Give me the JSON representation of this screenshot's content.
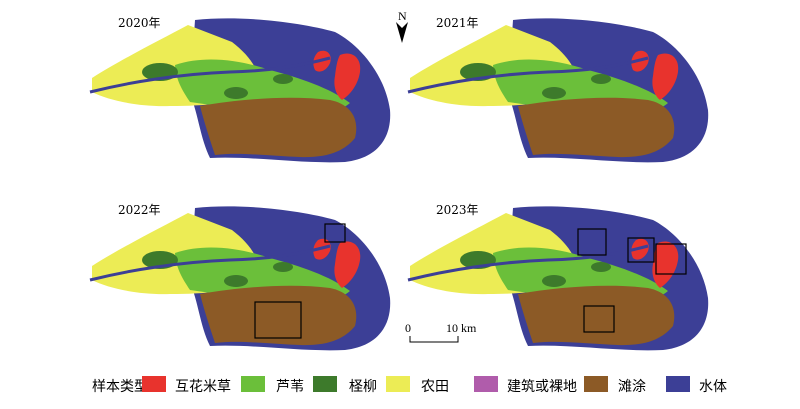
{
  "panels": [
    {
      "year_label": "2020年",
      "boxes": 0
    },
    {
      "year_label": "2021年",
      "boxes": 0
    },
    {
      "year_label": "2022年",
      "boxes": 2
    },
    {
      "year_label": "2023年",
      "boxes": 4
    }
  ],
  "north_arrow": {
    "label": "N"
  },
  "scale_bar": {
    "start_label": "0",
    "end_label": "10 km"
  },
  "legend": {
    "title": "样本类型",
    "items": [
      {
        "label": "互花米草",
        "color": "#e8332d"
      },
      {
        "label": "芦苇",
        "color": "#6bbf3a"
      },
      {
        "label": "柽柳",
        "color": "#3d7a2b"
      },
      {
        "label": "农田",
        "color": "#ecec55"
      },
      {
        "label": "建筑或裸地",
        "color": "#b05cab"
      },
      {
        "label": "滩涂",
        "color": "#8c5a26"
      },
      {
        "label": "水体",
        "color": "#3c3f96"
      }
    ]
  }
}
